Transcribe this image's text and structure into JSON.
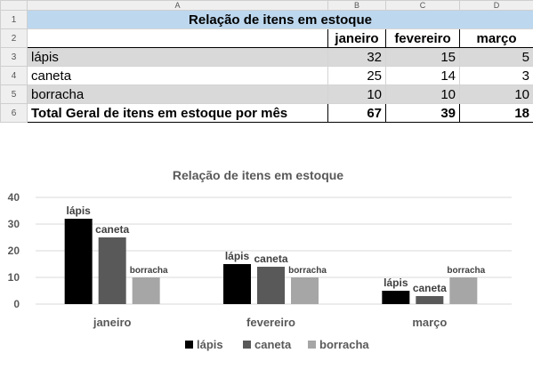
{
  "sheet": {
    "column_headers": [
      "A",
      "B",
      "C",
      "D"
    ],
    "row_numbers": [
      "1",
      "2",
      "3",
      "4",
      "5",
      "6"
    ],
    "title": "Relação de itens em estoque",
    "month_headers": [
      "janeiro",
      "fevereiro",
      "março"
    ],
    "rows": [
      {
        "label": "lápis",
        "values": [
          "32",
          "15",
          "5"
        ]
      },
      {
        "label": "caneta",
        "values": [
          "25",
          "14",
          "3"
        ]
      },
      {
        "label": "borracha",
        "values": [
          "10",
          "10",
          "10"
        ]
      }
    ],
    "total": {
      "label": "Total Geral de itens em estoque por mês",
      "values": [
        "67",
        "39",
        "18"
      ]
    }
  },
  "chart_data": {
    "type": "bar",
    "title": "Relação de itens em estoque",
    "categories": [
      "janeiro",
      "fevereiro",
      "março"
    ],
    "series": [
      {
        "name": "lápis",
        "values": [
          32,
          15,
          5
        ],
        "color": "#000000"
      },
      {
        "name": "caneta",
        "values": [
          25,
          14,
          3
        ],
        "color": "#595959"
      },
      {
        "name": "borracha",
        "values": [
          10,
          10,
          10
        ],
        "color": "#a6a6a6"
      }
    ],
    "yticks": [
      0,
      10,
      20,
      30,
      40
    ],
    "ylim": [
      0,
      40
    ],
    "grid": true,
    "legend": "bottom"
  }
}
